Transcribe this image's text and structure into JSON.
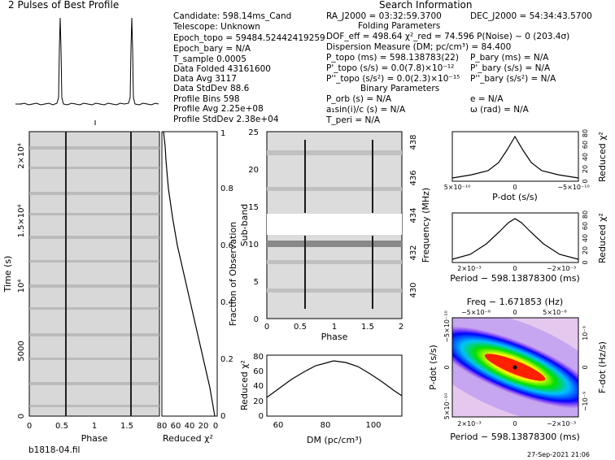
{
  "title": "2 Pulses of Best Profile",
  "search_info_title": "Search Information",
  "folding_params_title": "Folding Parameters",
  "binary_params_title": "Binary Parameters",
  "footer": {
    "filename": "b1818-04.fil",
    "timestamp": "27-Sep-2021 21:06"
  },
  "info": {
    "candidate": "Candidate:  598.14ms_Cand",
    "telescope": "Telescope:   Unknown",
    "epoch_topo": "Epoch_topo = 59484.52442419259",
    "epoch_bary": "Epoch_bary = N/A",
    "t_sample": "T_sample        0.0005",
    "data_folded": "Data Folded     43161600",
    "data_avg": "Data Avg        3117",
    "data_stddev": "Data StdDev     88.6",
    "profile_bins": "Profile Bins    598",
    "profile_avg": "Profile Avg     2.25e+08",
    "profile_stddev": "Profile StdDev  2.38e+04",
    "ra": "RA_J2000 = 03:32:59.3700",
    "dec": "DEC_J2000 = 54:34:43.5700",
    "dof": "DOF_eff = 498.64  χ²_red = 74.596  P(Noise) ~ 0   (203.4σ)",
    "dm": "Dispersion Measure (DM; pc/cm³) = 84.400",
    "p_topo": "P_topo (ms)  =  598.138783(22)",
    "pd_topo": "P'_topo (s/s) = 0.0(7.8)×10⁻¹²",
    "pdd_topo": "P''_topo (s/s²) = 0.0(2.3)×10⁻¹⁵",
    "p_bary": "P_bary (ms) = N/A",
    "pd_bary": "P'_bary (s/s) = N/A",
    "pdd_bary": "P''_bary (s/s²) = N/A",
    "p_orb": "P_orb (s) = N/A",
    "a1sini": "a₁sin(i)/c (s) = N/A",
    "t_peri": "T_peri = N/A",
    "e": "e = N/A",
    "omega": "ω (rad) = N/A"
  },
  "chart_data": [
    {
      "type": "line",
      "title": "2 Pulses of Best Profile",
      "xlim": [
        0,
        2
      ],
      "peaks_phase": [
        0.58,
        1.58
      ],
      "description_values": {
        "baseline": 0,
        "peak": 1
      }
    },
    {
      "type": "heatmap",
      "name": "time-phase",
      "xlabel": "Phase",
      "ylabel": "Time (s)",
      "xlim": [
        0,
        2
      ],
      "ylim": [
        0,
        21600
      ],
      "x_ticks": [
        "0",
        "0.5",
        "1",
        "1.5",
        "2"
      ],
      "y_ticks": [
        "0",
        "5000",
        "10⁴",
        "1.5×10⁴",
        "2×10⁴"
      ],
      "pulse_phase": [
        0.58,
        1.58
      ]
    },
    {
      "type": "line",
      "name": "reduced-chi2-vs-fraction",
      "xlabel": "Reduced χ²",
      "ylabel": "Fraction of Observation",
      "x_ticks": [
        "80",
        "60",
        "40",
        "20",
        "0"
      ],
      "y_ticks": [
        "0",
        "0.2",
        "0.4",
        "0.6",
        "0.8",
        "1"
      ],
      "points": [
        [
          0,
          0
        ],
        [
          5,
          0.1
        ],
        [
          12,
          0.2
        ],
        [
          20,
          0.3
        ],
        [
          28,
          0.4
        ],
        [
          37,
          0.5
        ],
        [
          45,
          0.6
        ],
        [
          53,
          0.7
        ],
        [
          60,
          0.8
        ],
        [
          67,
          0.9
        ],
        [
          70,
          0.93
        ],
        [
          73,
          0.97
        ],
        [
          75,
          1
        ]
      ]
    },
    {
      "type": "heatmap",
      "name": "subband-phase",
      "xlabel": "Phase",
      "ylabel": "Sub-band",
      "y2label": "Frequency (MHz)",
      "xlim": [
        0,
        2
      ],
      "ylim": [
        0,
        25
      ],
      "x_ticks": [
        "0",
        "0.5",
        "1",
        "1.5",
        "2"
      ],
      "y_ticks": [
        "0",
        "5",
        "10",
        "15",
        "20",
        "25"
      ],
      "y2_ticks": [
        "430",
        "432",
        "434",
        "436",
        "438"
      ],
      "masked_subbands": [
        12,
        13
      ]
    },
    {
      "type": "line",
      "name": "dm-curve",
      "xlabel": "DM (pc/cm³)",
      "ylabel": "Reduced χ²",
      "xlim": [
        55,
        111
      ],
      "ylim": [
        0,
        80
      ],
      "x_ticks": [
        "60",
        "80",
        "100"
      ],
      "y_ticks": [
        "0",
        "20",
        "40",
        "60",
        "80"
      ],
      "points": [
        [
          55,
          25
        ],
        [
          60,
          36
        ],
        [
          65,
          46
        ],
        [
          70,
          56
        ],
        [
          75,
          66
        ],
        [
          80,
          72
        ],
        [
          84.4,
          74.6
        ],
        [
          90,
          71
        ],
        [
          95,
          64
        ],
        [
          100,
          55
        ],
        [
          105,
          44
        ],
        [
          111,
          32
        ]
      ]
    },
    {
      "type": "line",
      "name": "pdot-curve",
      "xlabel": "P-dot (s/s)",
      "ylabel": "Reduced χ²",
      "xlim": [
        -5e-10,
        5e-10
      ],
      "ylim": [
        0,
        80
      ],
      "x_ticks": [
        "5×10⁻¹⁰",
        "0",
        "−5×10⁻¹⁰"
      ],
      "y_ticks": [
        "0",
        "20",
        "40",
        "60",
        "80"
      ],
      "points": [
        [
          -5e-10,
          4
        ],
        [
          -3e-10,
          8
        ],
        [
          -2e-10,
          13
        ],
        [
          -1e-10,
          28
        ],
        [
          -5e-11,
          45
        ],
        [
          0,
          75
        ],
        [
          5e-11,
          45
        ],
        [
          1e-10,
          28
        ],
        [
          2e-10,
          13
        ],
        [
          3e-10,
          8
        ],
        [
          5e-10,
          4
        ]
      ]
    },
    {
      "type": "line",
      "name": "period-curve",
      "xlabel": "Period − 598.13878300 (ms)",
      "ylabel": "Reduced χ²",
      "xlim": [
        -0.003,
        0.003
      ],
      "ylim": [
        0,
        80
      ],
      "x_ticks": [
        "2×10⁻³",
        "0",
        "−2×10⁻³"
      ],
      "y_ticks": [
        "0",
        "20",
        "40",
        "60",
        "80"
      ],
      "points": [
        [
          -0.003,
          4
        ],
        [
          -0.002,
          14
        ],
        [
          -0.001,
          38
        ],
        [
          0,
          75
        ],
        [
          0.001,
          38
        ],
        [
          0.002,
          14
        ],
        [
          0.003,
          4
        ]
      ]
    },
    {
      "type": "heatmap",
      "name": "period-pdot-plane",
      "xlabel": "Period − 598.13878300 (ms)",
      "ylabel": "P-dot (s/s)",
      "x2label": "Freq − 1.671853 (Hz)",
      "y2label": "F-dot (Hz/s)",
      "x_ticks": [
        "2×10⁻³",
        "0",
        "−2×10⁻³"
      ],
      "y_ticks": [
        "5×10⁻¹⁰",
        "0",
        "−5×10⁻¹⁰"
      ],
      "x2_ticks": [
        "−5×10⁻⁶",
        "0",
        "5×10⁻⁶"
      ],
      "y2_ticks": [
        "10⁻⁹",
        "0",
        "−10⁻⁹"
      ],
      "best_point": [
        0,
        0
      ]
    }
  ]
}
